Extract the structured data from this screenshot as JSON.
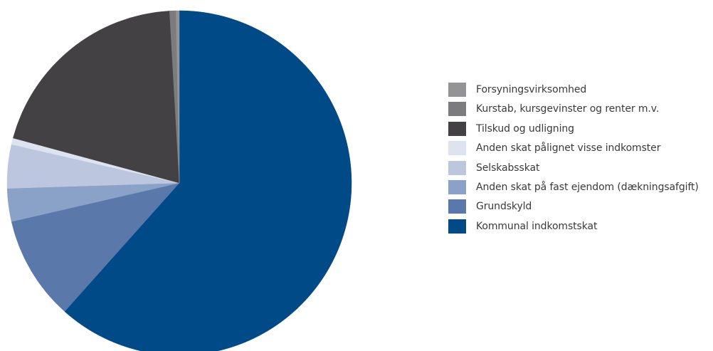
{
  "chart_data": {
    "type": "pie",
    "title": "",
    "slices": [
      {
        "label": "Kommunal indkomstskat",
        "value": 61.6,
        "color": "#004a87"
      },
      {
        "label": "Grundskyld",
        "value": 9.8,
        "color": "#5a78a9"
      },
      {
        "label": "Anden skat på fast ejendom (dækningsafgift)",
        "value": 3.1,
        "color": "#8aa1c8"
      },
      {
        "label": "Selskabsskat",
        "value": 4.1,
        "color": "#bcc7df"
      },
      {
        "label": "Anden skat pålignet visse indkomster",
        "value": 0.6,
        "color": "#dde3ef"
      },
      {
        "label": "Tilskud og udligning",
        "value": 19.9,
        "color": "#434143"
      },
      {
        "label": "Kurstab, kursgevinster og renter m.v.",
        "value": 0.6,
        "color": "#7c7c7e"
      },
      {
        "label": "Forsyningsvirksomhed",
        "value": 0.3,
        "color": "#949497"
      }
    ],
    "legend": {
      "placement": "right",
      "items": [
        {
          "label": "Forsyningsvirksomhed",
          "color": "#949497"
        },
        {
          "label": "Kurstab, kursgevinster og renter m.v.",
          "color": "#7c7c7e"
        },
        {
          "label": "Tilskud og udligning",
          "color": "#434143"
        },
        {
          "label": "Anden skat pålignet visse indkomster",
          "color": "#dde3ef"
        },
        {
          "label": "Selskabsskat",
          "color": "#bcc7df"
        },
        {
          "label": "Anden skat på fast ejendom (dækningsafgift)",
          "color": "#8aa1c8"
        },
        {
          "label": "Grundskyld",
          "color": "#5a78a9"
        },
        {
          "label": "Kommunal indkomstskat",
          "color": "#004a87"
        }
      ]
    }
  }
}
